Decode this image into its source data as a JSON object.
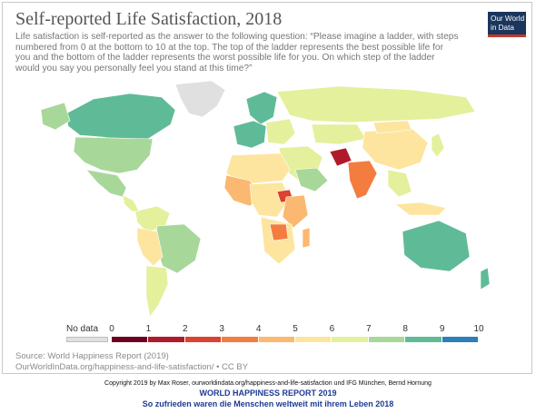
{
  "title": "Self-reported Life Satisfaction, 2018",
  "subtitle": "Life satisfaction is self-reported as the answer to the following question: “Please imagine a ladder, with steps numbered from 0 at the bottom to 10 at the top. The top of the ladder represents the best possible life for you and the bottom of the ladder represents the worst possible life for you. On which step of the ladder would you say you personally feel you stand at this time?”",
  "logo": {
    "line1": "Our World",
    "line2": "in Data"
  },
  "legend": {
    "nodata_label": "No data",
    "ticks": [
      "0",
      "1",
      "2",
      "3",
      "4",
      "5",
      "6",
      "7",
      "8",
      "9",
      "10"
    ],
    "colors": [
      "#6b0021",
      "#b11a2c",
      "#d9432f",
      "#f27d3f",
      "#fbb870",
      "#fde59f",
      "#e4f09c",
      "#a8d79a",
      "#5fbb97",
      "#2c7fb8",
      "#5b4fa0"
    ]
  },
  "source": "Source: World Happiness Report (2019)",
  "link": "OurWorldInData.org/happiness-and-life-satisfaction/ • CC BY",
  "copyright": "Copyright 2019 by Max Roser, ourworldindata.org/happiness-and-life-satisfaction und IFG München, Bernd Hornung",
  "report_title": "WORLD HAPPINESS REPORT 2019",
  "report_subtitle": "So zufrieden waren die Menschen weltweit mit ihrem Leben 2018",
  "colors": {
    "no_data": "#e0e0e0",
    "title": "#555555",
    "report": "#1f3a93"
  }
}
